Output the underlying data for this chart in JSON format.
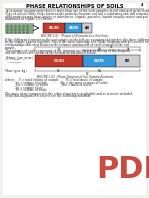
{
  "title": "PHASE RELATIONSHIPS OF SOILS",
  "bg_color": "#f5f5f0",
  "page_bg": "#ffffff",
  "page_num": "4",
  "solid_color": "#c0392b",
  "water_color": "#3498db",
  "air_color": "#d0d0d0",
  "pdf_color": "#c0392b",
  "text_color": "#222222",
  "fs_title": 3.8,
  "fs_body": 2.1,
  "fs_caption": 2.0,
  "fs_label": 2.0,
  "fs_pdf": 22
}
